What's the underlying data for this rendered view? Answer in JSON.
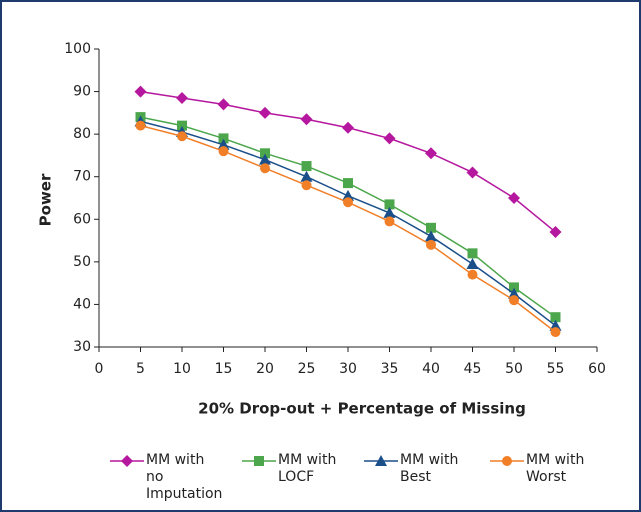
{
  "chart_data": {
    "type": "line",
    "x_label": "20% Drop-out + Percentage of Missing",
    "y_label": "Power",
    "x": [
      5,
      10,
      15,
      20,
      25,
      30,
      35,
      40,
      45,
      50,
      55,
      60
    ],
    "xlim": [
      0,
      60
    ],
    "xticks": [
      0,
      5,
      10,
      15,
      20,
      25,
      30,
      35,
      40,
      45,
      50,
      55,
      60
    ],
    "ylim": [
      30,
      100
    ],
    "yticks": [
      30,
      40,
      50,
      60,
      70,
      80,
      90,
      100
    ],
    "grid": false,
    "legend": "bottom",
    "series": [
      {
        "name": "MM with no Imputation",
        "color": "#b5179e",
        "marker": "diamond",
        "values": [
          90,
          88.5,
          87,
          85,
          83.5,
          81.5,
          79,
          75.5,
          71,
          65,
          57,
          null
        ]
      },
      {
        "name": "MM with LOCF",
        "color": "#4ca64c",
        "marker": "square",
        "values": [
          84,
          82,
          79,
          75.5,
          72.5,
          68.5,
          63.5,
          58,
          52,
          44,
          37,
          null
        ]
      },
      {
        "name": "MM with Best",
        "color": "#1a4f8a",
        "marker": "triangle",
        "values": [
          83,
          80.5,
          77.5,
          74,
          70,
          65.5,
          61.5,
          56,
          49.5,
          42.5,
          35,
          null
        ]
      },
      {
        "name": "MM with Worst",
        "color": "#f07f28",
        "marker": "circle",
        "values": [
          82,
          79.5,
          76,
          72,
          68,
          64,
          59.5,
          54,
          47,
          41,
          33.5,
          null
        ]
      }
    ]
  }
}
